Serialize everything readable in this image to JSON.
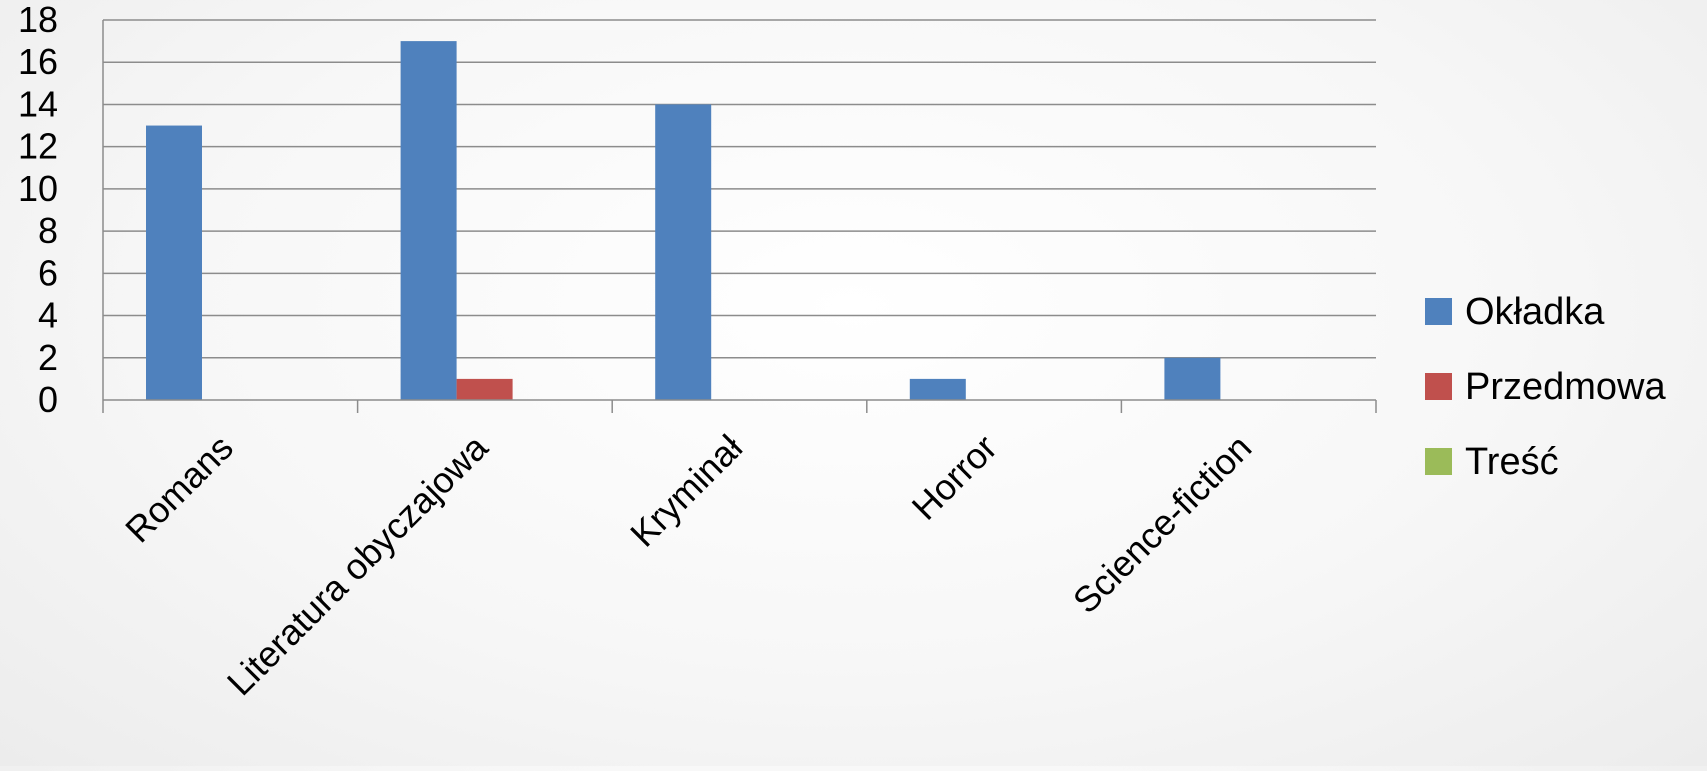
{
  "chart_data": {
    "type": "bar",
    "title": "",
    "xlabel": "",
    "ylabel": "",
    "categories": [
      "Romans",
      "Literatura obyczajowa",
      "Kryminał",
      "Horror",
      "Science-fiction"
    ],
    "series": [
      {
        "name": "Okładka",
        "color": "#4F81BD",
        "values": [
          13,
          17,
          14,
          1,
          2
        ]
      },
      {
        "name": "Przedmowa",
        "color": "#C0504D",
        "values": [
          0,
          1,
          0,
          0,
          0
        ]
      },
      {
        "name": "Treść",
        "color": "#9BBB59",
        "values": [
          0,
          0,
          0,
          0,
          0
        ]
      }
    ],
    "ylim": [
      0,
      18
    ],
    "yticks": [
      "0",
      "2",
      "4",
      "6",
      "8",
      "10",
      "12",
      "14",
      "16",
      "18"
    ],
    "grid": true,
    "legend_position": "right"
  }
}
